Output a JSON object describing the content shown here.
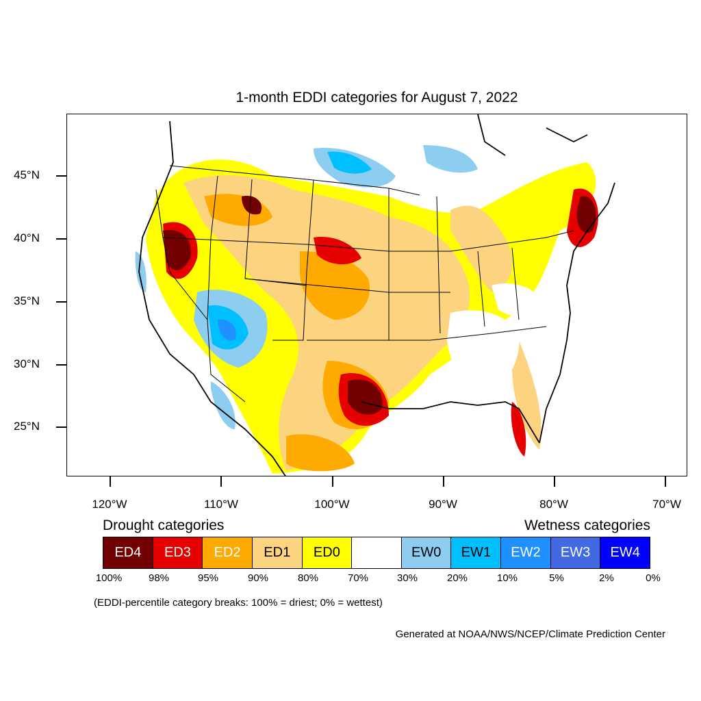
{
  "title": "1-month EDDI categories for August 7, 2022",
  "axes": {
    "lat_labels": [
      "45°N",
      "40°N",
      "35°N",
      "30°N",
      "25°N"
    ],
    "lon_labels": [
      "120°W",
      "110°W",
      "100°W",
      "90°W",
      "80°W",
      "70°W"
    ]
  },
  "legend": {
    "drought_heading": "Drought categories",
    "wetness_heading": "Wetness categories",
    "categories": [
      {
        "label": "ED4",
        "color": "#730000",
        "text_color": "#ffffff"
      },
      {
        "label": "ED3",
        "color": "#e60000",
        "text_color": "#ffffff"
      },
      {
        "label": "ED2",
        "color": "#ffaa00",
        "text_color": "#ffffff"
      },
      {
        "label": "ED1",
        "color": "#fcd37f",
        "text_color": "#000000"
      },
      {
        "label": "ED0",
        "color": "#ffff00",
        "text_color": "#000000"
      },
      {
        "label": "",
        "color": "#ffffff",
        "text_color": "#000000"
      },
      {
        "label": "EW0",
        "color": "#8ccdf0",
        "text_color": "#000000"
      },
      {
        "label": "EW1",
        "color": "#00bfff",
        "text_color": "#000000"
      },
      {
        "label": "EW2",
        "color": "#1e90ff",
        "text_color": "#ffffff"
      },
      {
        "label": "EW3",
        "color": "#4169e1",
        "text_color": "#ffffff"
      },
      {
        "label": "EW4",
        "color": "#0000ff",
        "text_color": "#ffffff"
      }
    ],
    "percent_breaks": [
      "100%",
      "98%",
      "95%",
      "90%",
      "80%",
      "70%",
      "30%",
      "20%",
      "10%",
      "5%",
      "2%",
      "0%"
    ]
  },
  "note": "(EDDI-percentile category breaks: 100% = driest; 0% = wettest)",
  "credit": "Generated at NOAA/NWS/NCEP/Climate Prediction Center"
}
